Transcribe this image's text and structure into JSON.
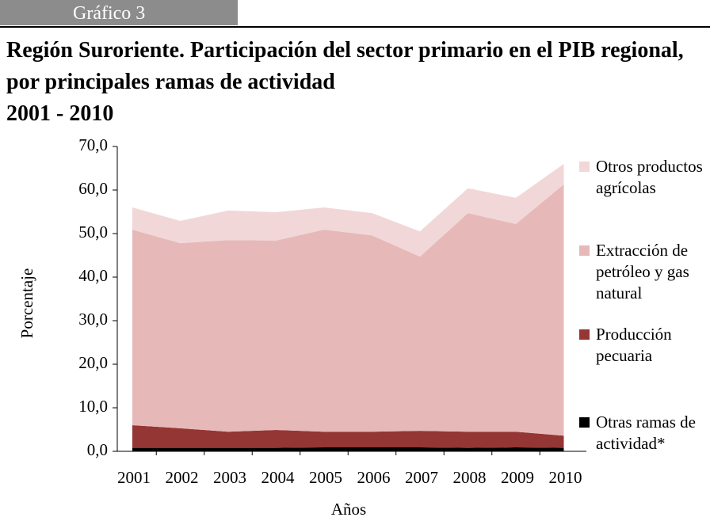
{
  "chart_data": {
    "type": "stacked-area",
    "label": "Gráfico 3",
    "title": "Región Suroriente. Participación del sector primario en el PIB regional, por principales ramas de actividad",
    "subtitle": "2001 - 2010",
    "y_label": "Porcentaje",
    "x_label": "Años",
    "categories": [
      "2001",
      "2002",
      "2003",
      "2004",
      "2005",
      "2006",
      "2007",
      "2008",
      "2009",
      "2010"
    ],
    "series": [
      {
        "name": "Otras ramas de actividad*",
        "color": "#000000",
        "values": [
          0.8,
          0.8,
          0.8,
          0.8,
          0.9,
          0.9,
          0.9,
          0.8,
          0.9,
          0.8
        ]
      },
      {
        "name": "Producción pecuaria",
        "color": "#943634",
        "values": [
          5.2,
          4.5,
          3.7,
          4.1,
          3.6,
          3.6,
          3.8,
          3.7,
          3.6,
          2.8
        ]
      },
      {
        "name": "Extracción de petróleo y gas natural",
        "color": "#e6b9b8",
        "values": [
          44.9,
          42.5,
          44.0,
          43.5,
          46.4,
          45.1,
          40.0,
          50.2,
          47.7,
          57.7
        ]
      },
      {
        "name": "Otros productos agrícolas",
        "color": "#f2d7d8",
        "values": [
          5.1,
          5.1,
          6.8,
          6.5,
          5.1,
          5.1,
          5.8,
          5.7,
          6.0,
          4.7
        ]
      }
    ],
    "ylim": [
      0,
      70
    ],
    "yticks": [
      {
        "value": 0,
        "label": "0,0"
      },
      {
        "value": 10,
        "label": "10,0"
      },
      {
        "value": 20,
        "label": "20,0"
      },
      {
        "value": 30,
        "label": "30,0"
      },
      {
        "value": 40,
        "label": "40,0"
      },
      {
        "value": 50,
        "label": "50,0"
      },
      {
        "value": 60,
        "label": "60,0"
      },
      {
        "value": 70,
        "label": "70,0"
      }
    ],
    "grid": false
  }
}
